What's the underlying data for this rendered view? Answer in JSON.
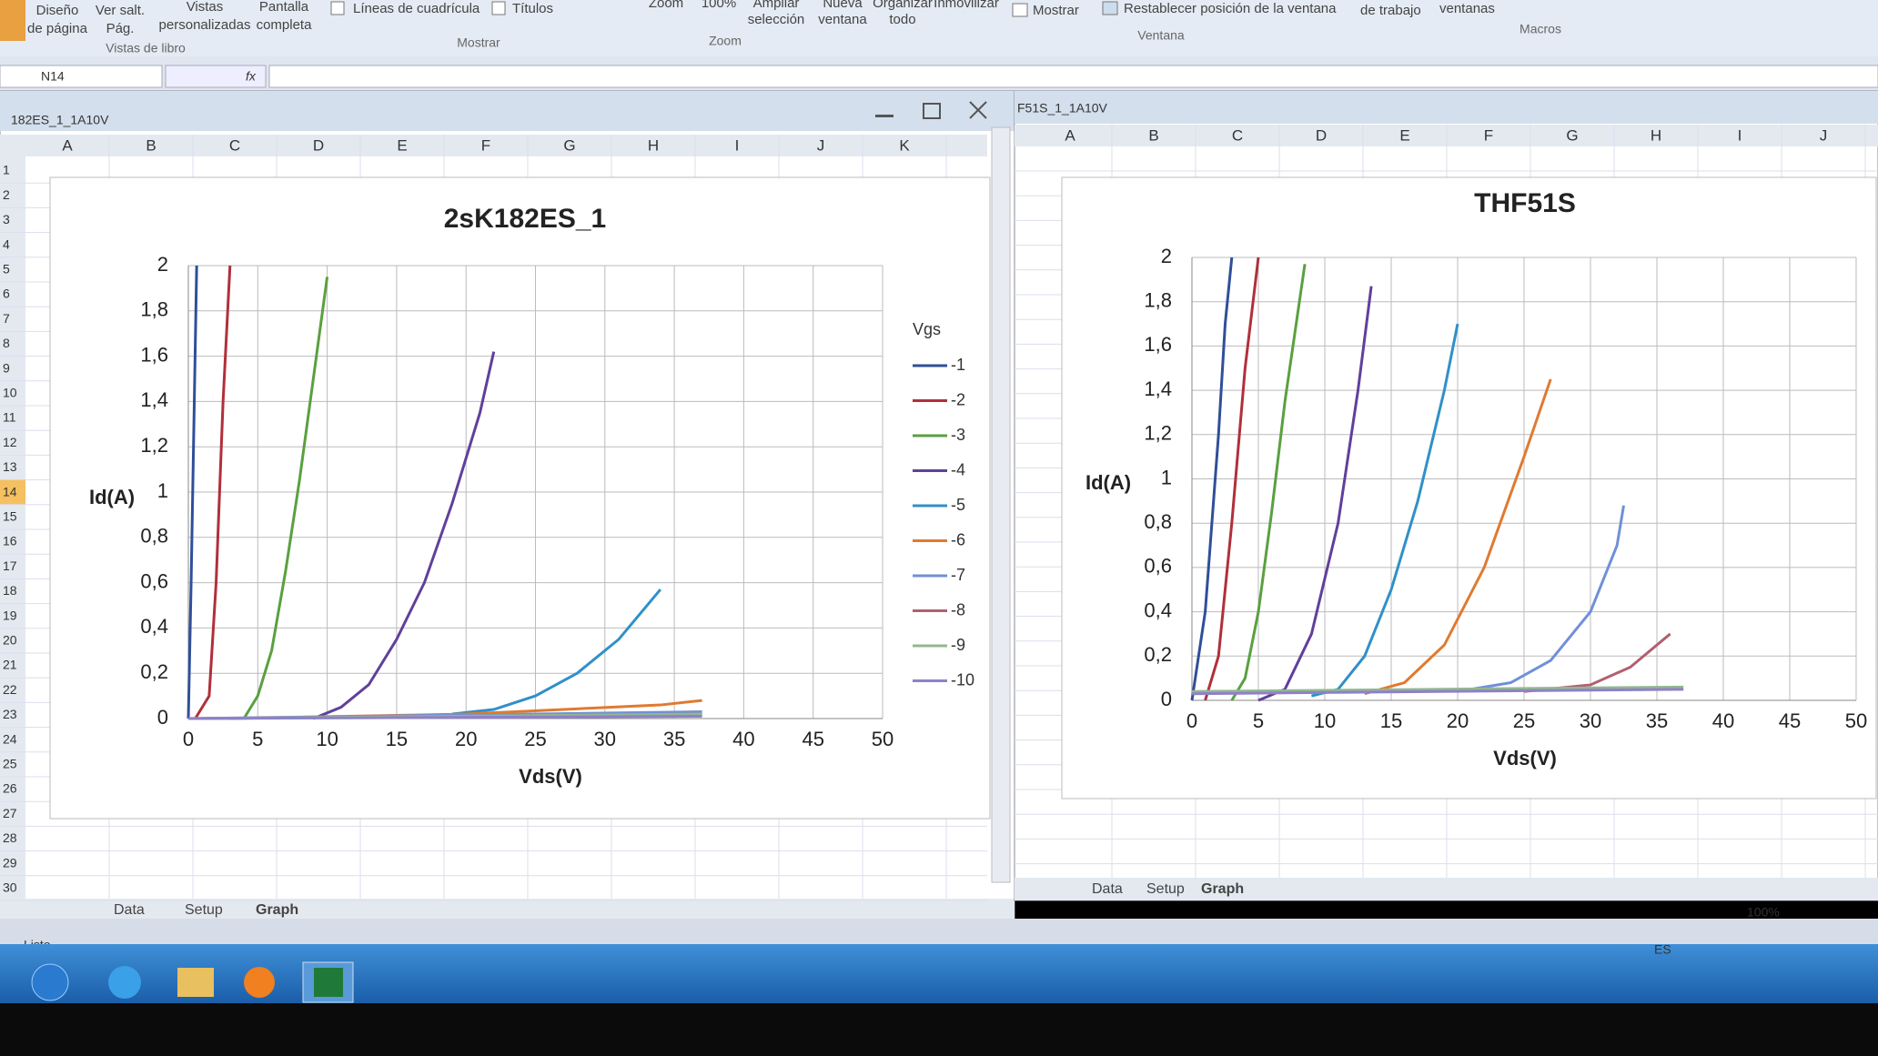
{
  "ribbon": {
    "items": [
      "Diseño",
      "de página",
      "Ver salt.",
      "Pág.",
      "Vistas",
      "personalizadas",
      "Pantalla",
      "completa",
      "Líneas de cuadrícula",
      "Títulos",
      "Zoom",
      "100%",
      "Ampliar",
      "selección",
      "Nueva",
      "ventana",
      "Organizar",
      "todo",
      "Inmovilizar",
      "Mostrar",
      "Restablecer posición de la ventana",
      "de trabajo",
      "ventanas"
    ],
    "groups": [
      "Vistas de libro",
      "Mostrar",
      "Zoom",
      "Ventana",
      "Macros"
    ]
  },
  "formula_bar": {
    "name_box": "N14",
    "fx": "fx"
  },
  "left_window": {
    "title": "182ES_1_1A10V",
    "columns": [
      "A",
      "B",
      "C",
      "D",
      "E",
      "F",
      "G",
      "H",
      "I",
      "J",
      "K"
    ],
    "rows": [
      "1",
      "2",
      "3",
      "4",
      "5",
      "6",
      "7",
      "8",
      "9",
      "10",
      "11",
      "12",
      "13",
      "14",
      "15",
      "16",
      "17",
      "18",
      "19",
      "20",
      "21",
      "22",
      "23",
      "24",
      "25",
      "26",
      "27",
      "28",
      "29",
      "30"
    ],
    "tabs": [
      "Data",
      "Setup",
      "Graph"
    ]
  },
  "right_window": {
    "title": "F51S_1_1A10V",
    "columns": [
      "A",
      "B",
      "C",
      "D",
      "E",
      "F",
      "G",
      "H",
      "I",
      "J"
    ],
    "tabs": [
      "Data",
      "Setup",
      "Graph"
    ]
  },
  "status_bar": {
    "text": "Listo",
    "zoom": "100%"
  },
  "taskbar": {
    "language": "ES"
  },
  "chart_data": [
    {
      "type": "line",
      "title": "2sK182ES_1",
      "x_label": "Vds(V)",
      "y_label": "Id(A)",
      "legend": "right",
      "legend_title": "Vgs",
      "grid": true,
      "xlim": [
        0,
        50
      ],
      "xticks": [
        0,
        5,
        10,
        15,
        20,
        25,
        30,
        35,
        40,
        45,
        50
      ],
      "ylim": [
        0,
        2
      ],
      "yticks": [
        0,
        {
          "value": 0.2,
          "label": "0,2"
        },
        {
          "value": 0.4,
          "label": "0,4"
        },
        {
          "value": 0.6,
          "label": "0,6"
        },
        {
          "value": 0.8,
          "label": "0,8"
        },
        1,
        {
          "value": 1.2,
          "label": "1,2"
        },
        {
          "value": 1.4,
          "label": "1,4"
        },
        {
          "value": 1.6,
          "label": "1,6"
        },
        {
          "value": 1.8,
          "label": "1,8"
        },
        2
      ],
      "series": [
        {
          "name": "-1",
          "color": "#2f4f9a",
          "x": [
            0,
            0.2,
            0.4,
            0.6
          ],
          "values": [
            0,
            0.6,
            1.3,
            2
          ]
        },
        {
          "name": "-2",
          "color": "#b0303a",
          "x": [
            0.5,
            1.5,
            2,
            2.5,
            3
          ],
          "values": [
            0,
            0.1,
            0.6,
            1.4,
            2
          ]
        },
        {
          "name": "-3",
          "color": "#5aa040",
          "x": [
            4,
            5,
            6,
            7,
            8,
            9,
            10
          ],
          "values": [
            0,
            0.1,
            0.3,
            0.65,
            1.05,
            1.5,
            1.95
          ]
        },
        {
          "name": "-4",
          "color": "#60409a",
          "x": [
            9,
            11,
            13,
            15,
            17,
            19,
            21,
            22
          ],
          "values": [
            0,
            0.05,
            0.15,
            0.35,
            0.6,
            0.95,
            1.35,
            1.62
          ]
        },
        {
          "name": "-5",
          "color": "#3090c8",
          "x": [
            19,
            22,
            25,
            28,
            31,
            34
          ],
          "values": [
            0.02,
            0.04,
            0.1,
            0.2,
            0.35,
            0.57
          ]
        },
        {
          "name": "-6",
          "color": "#e07a30",
          "x": [
            3,
            20,
            34,
            37
          ],
          "values": [
            0,
            0.02,
            0.06,
            0.08
          ]
        },
        {
          "name": "-7",
          "color": "#7090d8",
          "x": [
            0,
            37
          ],
          "values": [
            0,
            0.03
          ]
        },
        {
          "name": "-8",
          "color": "#b06070",
          "x": [
            0,
            37
          ],
          "values": [
            0,
            0.02
          ]
        },
        {
          "name": "-9",
          "color": "#90b890",
          "x": [
            0,
            37
          ],
          "values": [
            0,
            0.02
          ]
        },
        {
          "name": "-10",
          "color": "#9080c8",
          "x": [
            0,
            37
          ],
          "values": [
            0,
            0.01
          ]
        }
      ]
    },
    {
      "type": "line",
      "title": "THF51S",
      "x_label": "Vds(V)",
      "y_label": "Id(A)",
      "grid": true,
      "xlim": [
        0,
        50
      ],
      "xticks": [
        0,
        5,
        10,
        15,
        20,
        25,
        30,
        35,
        40,
        45,
        50
      ],
      "ylim": [
        0,
        2
      ],
      "yticks": [
        0,
        {
          "value": 0.2,
          "label": "0,2"
        },
        {
          "value": 0.4,
          "label": "0,4"
        },
        {
          "value": 0.6,
          "label": "0,6"
        },
        {
          "value": 0.8,
          "label": "0,8"
        },
        1,
        {
          "value": 1.2,
          "label": "1,2"
        },
        {
          "value": 1.4,
          "label": "1,4"
        },
        {
          "value": 1.6,
          "label": "1,6"
        },
        {
          "value": 1.8,
          "label": "1,8"
        },
        2
      ],
      "series": [
        {
          "color": "#2f4f9a",
          "x": [
            0,
            1,
            2,
            2.5,
            3
          ],
          "values": [
            0,
            0.4,
            1.2,
            1.7,
            2
          ]
        },
        {
          "color": "#b0303a",
          "x": [
            1,
            2,
            3,
            4,
            5
          ],
          "values": [
            0,
            0.2,
            0.8,
            1.5,
            2
          ]
        },
        {
          "color": "#5aa040",
          "x": [
            3,
            4,
            5,
            6,
            7,
            8.5
          ],
          "values": [
            0,
            0.1,
            0.4,
            0.85,
            1.35,
            1.97
          ]
        },
        {
          "color": "#60409a",
          "x": [
            5,
            7,
            9,
            11,
            12.5,
            13.5
          ],
          "values": [
            0,
            0.05,
            0.3,
            0.8,
            1.4,
            1.87
          ]
        },
        {
          "color": "#3090c8",
          "x": [
            9,
            11,
            13,
            15,
            17,
            19,
            20
          ],
          "values": [
            0.02,
            0.05,
            0.2,
            0.5,
            0.9,
            1.4,
            1.7
          ]
        },
        {
          "color": "#e07a30",
          "x": [
            13,
            16,
            19,
            22,
            25,
            27
          ],
          "values": [
            0.03,
            0.08,
            0.25,
            0.6,
            1.1,
            1.45
          ]
        },
        {
          "color": "#7090d8",
          "x": [
            20,
            24,
            27,
            30,
            32,
            32.5
          ],
          "values": [
            0.04,
            0.08,
            0.18,
            0.4,
            0.7,
            0.88
          ]
        },
        {
          "color": "#b06070",
          "x": [
            25,
            30,
            33,
            36
          ],
          "values": [
            0.04,
            0.07,
            0.15,
            0.3
          ]
        },
        {
          "color": "#90b890",
          "x": [
            0,
            37
          ],
          "values": [
            0.04,
            0.06
          ]
        },
        {
          "color": "#9080c8",
          "x": [
            0,
            37
          ],
          "values": [
            0.03,
            0.05
          ]
        }
      ]
    }
  ]
}
